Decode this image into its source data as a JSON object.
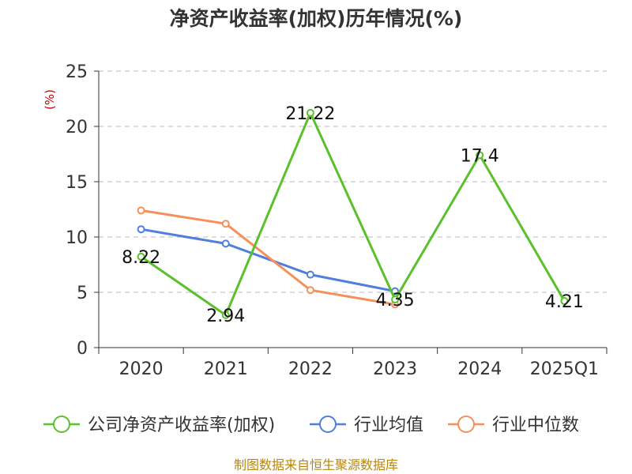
{
  "chart_data": {
    "type": "line",
    "title": "净资产收益率(加权)历年情况(%)",
    "ylabel": "(%)",
    "categories": [
      "2020",
      "2021",
      "2022",
      "2023",
      "2024",
      "2025Q1"
    ],
    "ylim": [
      0,
      25
    ],
    "yticks": [
      0,
      5,
      10,
      15,
      20,
      25
    ],
    "grid": true,
    "legend_position": "bottom",
    "series": [
      {
        "name": "公司净资产收益率(加权)",
        "color": "#5ac12c",
        "values": [
          8.22,
          2.94,
          21.22,
          4.35,
          17.4,
          4.21
        ],
        "show_labels": true
      },
      {
        "name": "行业均值",
        "color": "#4f7fdc",
        "values": [
          10.7,
          9.4,
          6.6,
          5.1,
          null,
          null
        ],
        "show_labels": false
      },
      {
        "name": "行业中位数",
        "color": "#f5905a",
        "values": [
          12.4,
          11.2,
          5.2,
          3.9,
          null,
          null
        ],
        "show_labels": false
      }
    ],
    "data_labels": [
      "8.22",
      "2.94",
      "21.22",
      "4.35",
      "17.4",
      "4.21"
    ]
  },
  "source": "制图数据来自恒生聚源数据库"
}
